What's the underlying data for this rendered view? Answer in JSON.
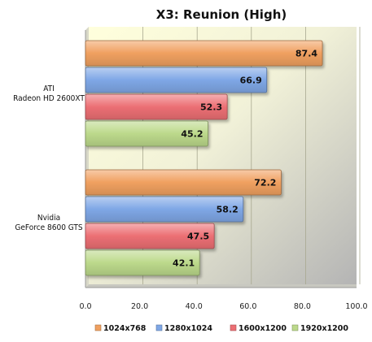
{
  "chart_data": {
    "type": "bar",
    "orientation": "horizontal",
    "title": "X3: Reunion (High)",
    "categories": [
      "ATI|Radeon HD 2600XT",
      "Nvidia|GeForce 8600 GTS"
    ],
    "series": [
      {
        "name": "1024x768",
        "values": [
          87.4,
          72.2
        ],
        "color": "#f0a060"
      },
      {
        "name": "1280x1024",
        "values": [
          66.9,
          58.2
        ],
        "color": "#7fa7e6"
      },
      {
        "name": "1600x1200",
        "values": [
          52.3,
          47.5
        ],
        "color": "#ec6f74"
      },
      {
        "name": "1920x1200",
        "values": [
          45.2,
          42.1
        ],
        "color": "#bcd98b"
      }
    ],
    "xlim": [
      0,
      100
    ],
    "xticks": [
      0,
      20,
      40,
      60,
      80,
      100
    ],
    "tick_labels": [
      "0.0",
      "20.0",
      "40.0",
      "60.0",
      "80.0",
      "100.0"
    ],
    "value_labels": [
      [
        "87.4",
        "72.2"
      ],
      [
        "66.9",
        "58.2"
      ],
      [
        "52.3",
        "47.5"
      ],
      [
        "45.2",
        "42.1"
      ]
    ],
    "grid": true,
    "legend_position": "bottom"
  }
}
